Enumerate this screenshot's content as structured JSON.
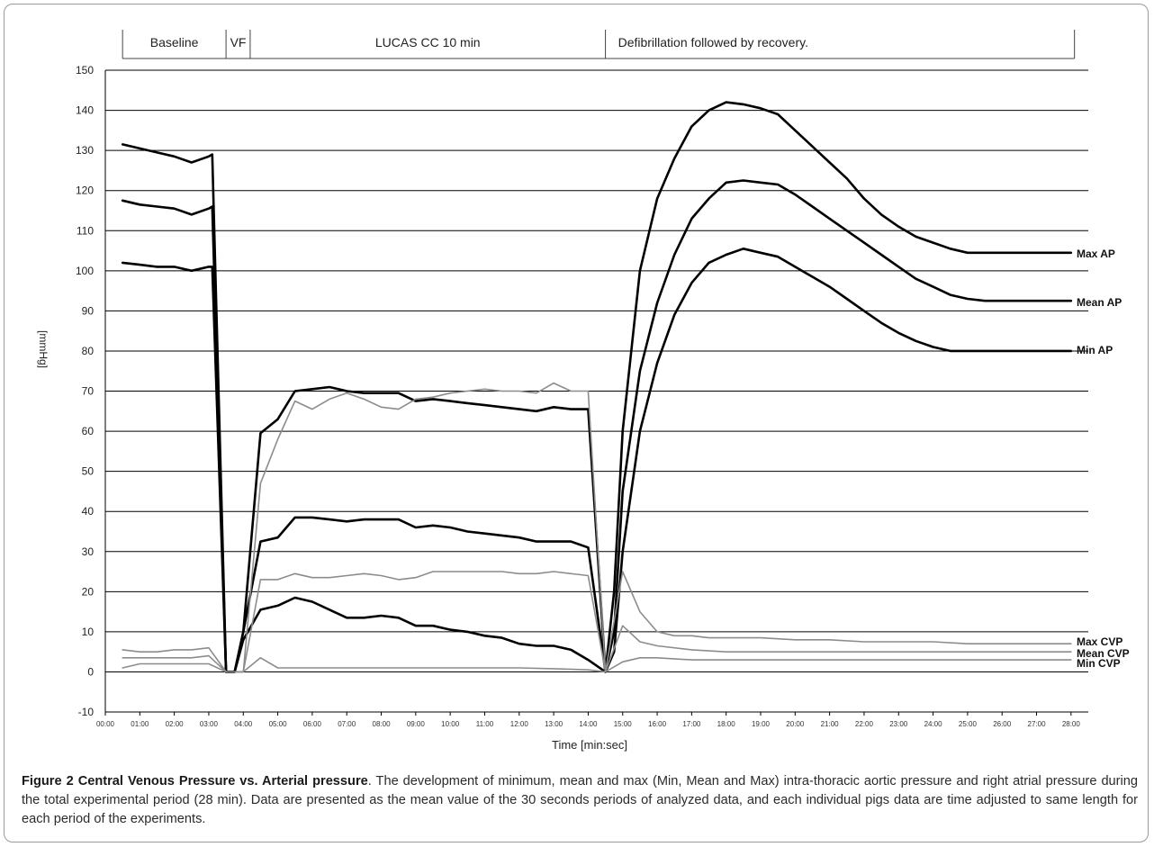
{
  "chart_data": {
    "type": "line",
    "ylabel": "[mmHg]",
    "xlabel": "Time [min:sec]",
    "ylim": [
      -10,
      150
    ],
    "xlim": [
      0,
      28.5
    ],
    "yticks": [
      -10,
      0,
      10,
      20,
      30,
      40,
      50,
      60,
      70,
      80,
      90,
      100,
      110,
      120,
      130,
      140,
      150
    ],
    "xticks": [
      "00:00",
      "01:00",
      "02:00",
      "03:00",
      "04:00",
      "05:00",
      "06:00",
      "07:00",
      "08:00",
      "09:00",
      "10:00",
      "11:00",
      "12:00",
      "13:00",
      "14:00",
      "15:00",
      "16:00",
      "17:00",
      "18:00",
      "19:00",
      "20:00",
      "21:00",
      "22:00",
      "23:00",
      "24:00",
      "25:00",
      "26:00",
      "27:00",
      "28:00"
    ],
    "grid": true,
    "phases": [
      {
        "label": "Baseline",
        "start": 0.5,
        "end": 3.5
      },
      {
        "label": "VF",
        "start": 3.5,
        "end": 4.2
      },
      {
        "label": "LUCAS CC 10 min",
        "start": 4.2,
        "end": 14.5
      },
      {
        "label": "Defibrillation followed by recovery.",
        "start": 14.5,
        "end": 28.1
      }
    ],
    "series": [
      {
        "name": "Max AP",
        "color": "#000000",
        "width": 2.6,
        "x": [
          0.5,
          1,
          1.5,
          2,
          2.5,
          3,
          3.1,
          3.5,
          3.75,
          4,
          4.5,
          5,
          5.5,
          6,
          6.5,
          7,
          7.5,
          8,
          8.5,
          9,
          9.5,
          10,
          10.5,
          11,
          11.5,
          12,
          12.5,
          13,
          13.5,
          14,
          14.5,
          14.75,
          15,
          15.5,
          16,
          16.5,
          17,
          17.5,
          18,
          18.5,
          19,
          19.5,
          20,
          20.5,
          21,
          21.5,
          22,
          22.5,
          23,
          23.5,
          24,
          24.5,
          25,
          25.5,
          26,
          26.5,
          27,
          27.5,
          28
        ],
        "y": [
          131.5,
          130.5,
          129.5,
          128.5,
          127,
          128.5,
          129,
          0,
          0,
          10,
          59.5,
          63,
          70,
          70.5,
          71,
          70,
          69.5,
          69.5,
          69.5,
          67.5,
          68,
          67.5,
          67,
          66.5,
          66,
          65.5,
          65,
          66,
          65.5,
          65.5,
          0,
          20,
          60,
          100,
          118,
          128,
          136,
          140,
          142,
          141.5,
          140.5,
          139,
          135,
          131,
          127,
          123,
          118,
          114,
          111,
          108.5,
          107,
          105.5,
          104.5,
          104.5,
          104.5,
          104.5,
          104.5,
          104.5,
          104.5
        ]
      },
      {
        "name": "Mean AP",
        "color": "#000000",
        "width": 2.6,
        "x": [
          0.5,
          1,
          1.5,
          2,
          2.5,
          3,
          3.1,
          3.5,
          3.75,
          4,
          4.5,
          5,
          5.5,
          6,
          6.5,
          7,
          7.5,
          8,
          8.5,
          9,
          9.5,
          10,
          10.5,
          11,
          11.5,
          12,
          12.5,
          13,
          13.5,
          14,
          14.5,
          14.75,
          15,
          15.5,
          16,
          16.5,
          17,
          17.5,
          18,
          18.5,
          19,
          19.5,
          20,
          20.5,
          21,
          21.5,
          22,
          22.5,
          23,
          23.5,
          24,
          24.5,
          25,
          25.5,
          26,
          26.5,
          27,
          27.5,
          28
        ],
        "y": [
          117.5,
          116.5,
          116,
          115.5,
          114,
          115.5,
          116,
          0,
          0,
          10,
          32.5,
          33.5,
          38.5,
          38.5,
          38,
          37.5,
          38,
          38,
          38,
          36,
          36.5,
          36,
          35,
          34.5,
          34,
          33.5,
          32.5,
          32.5,
          32.5,
          31,
          0,
          10,
          45,
          75,
          92,
          104,
          113,
          118,
          122,
          122.5,
          122,
          121.5,
          119,
          116,
          113,
          110,
          107,
          104,
          101,
          98,
          96,
          94,
          93,
          92.5,
          92.5,
          92.5,
          92.5,
          92.5,
          92.5
        ]
      },
      {
        "name": "Min AP",
        "color": "#000000",
        "width": 2.6,
        "x": [
          0.5,
          1,
          1.5,
          2,
          2.5,
          3,
          3.1,
          3.5,
          3.75,
          4,
          4.5,
          5,
          5.5,
          6,
          6.5,
          7,
          7.5,
          8,
          8.5,
          9,
          9.5,
          10,
          10.5,
          11,
          11.5,
          12,
          12.5,
          13,
          13.5,
          14,
          14.5,
          14.75,
          15,
          15.5,
          16,
          16.5,
          17,
          17.5,
          18,
          18.5,
          19,
          19.5,
          20,
          20.5,
          21,
          21.5,
          22,
          22.5,
          23,
          23.5,
          24,
          24.5,
          25,
          25.5,
          26,
          26.5,
          27,
          27.5,
          28
        ],
        "y": [
          102,
          101.5,
          101,
          101,
          100,
          101,
          101,
          0,
          0,
          8,
          15.5,
          16.5,
          18.5,
          17.5,
          15.5,
          13.5,
          13.5,
          14,
          13.5,
          11.5,
          11.5,
          10.5,
          10,
          9,
          8.5,
          7,
          6.5,
          6.5,
          5.5,
          3,
          0,
          5,
          30,
          60,
          77,
          89,
          97,
          102,
          104,
          105.5,
          104.5,
          103.5,
          101,
          98.5,
          96,
          93,
          90,
          87,
          84.5,
          82.5,
          81,
          80,
          80,
          80,
          80,
          80,
          80,
          80,
          80
        ]
      },
      {
        "name": "Max CVP",
        "color": "#8c8c8c",
        "width": 1.6,
        "x": [
          0.5,
          1,
          1.5,
          2,
          2.5,
          3,
          3.5,
          4,
          4.5,
          5,
          5.5,
          6,
          6.5,
          7,
          7.5,
          8,
          8.5,
          9,
          9.5,
          10,
          10.5,
          11,
          11.5,
          12,
          12.5,
          13,
          13.5,
          14,
          14.5,
          15,
          15.5,
          16,
          16.5,
          17,
          17.5,
          18,
          19,
          20,
          21,
          22,
          23,
          24,
          25,
          26,
          27,
          28
        ],
        "y": [
          5.5,
          5,
          5,
          5.5,
          5.5,
          6,
          0,
          0,
          47,
          58,
          67.5,
          65.5,
          68,
          69.5,
          68,
          66,
          65.5,
          68,
          68.5,
          69.5,
          70,
          70.5,
          70,
          70,
          69.5,
          72,
          70,
          70,
          0,
          25,
          15,
          10,
          9,
          9,
          8.5,
          8.5,
          8.5,
          8,
          8,
          7.5,
          7.5,
          7.5,
          7,
          7,
          7,
          7
        ]
      },
      {
        "name": "Mean CVP",
        "color": "#8c8c8c",
        "width": 1.6,
        "x": [
          0.5,
          1,
          1.5,
          2,
          2.5,
          3,
          3.5,
          4,
          4.5,
          5,
          5.5,
          6,
          6.5,
          7,
          7.5,
          8,
          8.5,
          9,
          9.5,
          10,
          10.5,
          11,
          11.5,
          12,
          12.5,
          13,
          13.5,
          14,
          14.5,
          15,
          15.5,
          16,
          17,
          18,
          19,
          20,
          21,
          22,
          23,
          24,
          25,
          26,
          27,
          28
        ],
        "y": [
          3.5,
          3.5,
          3.5,
          3.5,
          3.5,
          4,
          0,
          0,
          23,
          23,
          24.5,
          23.5,
          23.5,
          24,
          24.5,
          24,
          23,
          23.5,
          25,
          25,
          25,
          25,
          25,
          24.5,
          24.5,
          25,
          24.5,
          24,
          0,
          11.5,
          7.5,
          6.5,
          5.5,
          5,
          5,
          5,
          5,
          5,
          5,
          5,
          5,
          5,
          5,
          5
        ]
      },
      {
        "name": "Min CVP",
        "color": "#8c8c8c",
        "width": 1.6,
        "x": [
          0.5,
          1,
          1.5,
          2,
          2.5,
          3,
          3.5,
          4,
          4.5,
          5,
          5.5,
          6,
          7,
          8,
          9,
          10,
          11,
          12,
          13,
          14,
          14.5,
          15,
          15.5,
          16,
          17,
          18,
          19,
          20,
          21,
          22,
          23,
          24,
          25,
          26,
          27,
          28
        ],
        "y": [
          1,
          2,
          2,
          2,
          2,
          2,
          0,
          0,
          3.5,
          1,
          1,
          1,
          1,
          1,
          1,
          1,
          1,
          1,
          0.8,
          0.5,
          0,
          2.5,
          3.5,
          3.5,
          3,
          3,
          3,
          3,
          3,
          3,
          3,
          3,
          3,
          3,
          3,
          3
        ]
      }
    ]
  },
  "caption": {
    "figure_label": "Figure 2",
    "title": "Central Venous Pressure vs. Arterial pressure",
    "body": ". The development of minimum, mean and max (Min, Mean and Max) intra-thoracic aortic pressure and right atrial pressure during the total experimental period (28 min). Data are presented as the mean value of the 30 seconds periods of analyzed data, and each individual pigs data are time adjusted to same length for each period of the experiments."
  }
}
